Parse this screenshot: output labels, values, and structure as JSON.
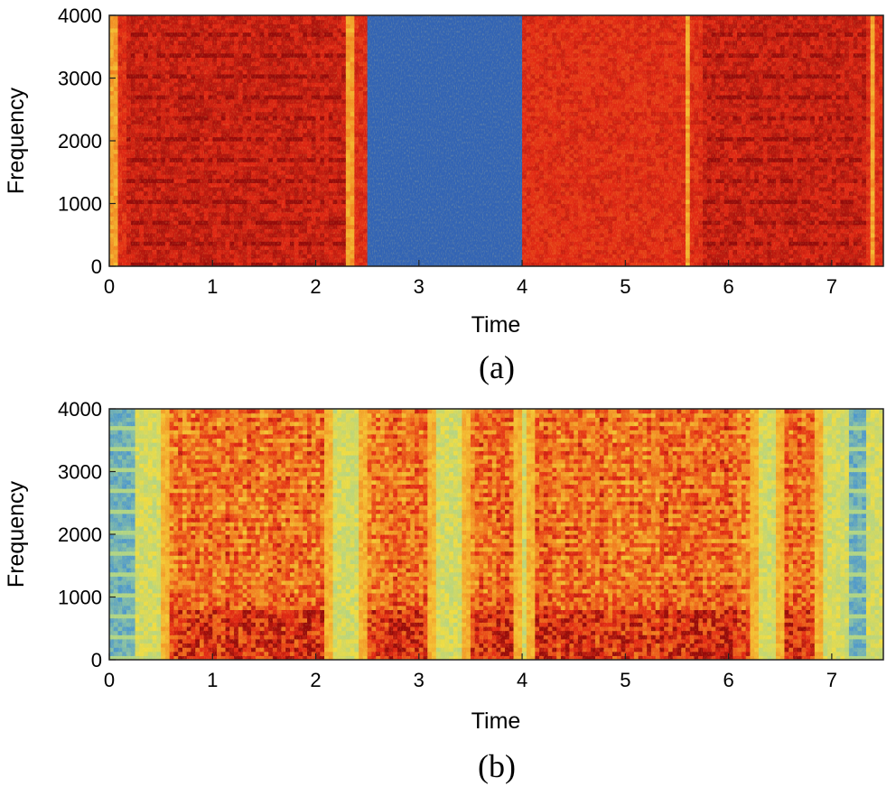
{
  "chart_data": [
    {
      "type": "heatmap",
      "panel_label": "(a)",
      "title": "",
      "xlabel": "Time",
      "ylabel": "Frequency",
      "xlim": [
        0,
        7.5
      ],
      "ylim": [
        0,
        4000
      ],
      "xticks": [
        0,
        1,
        2,
        3,
        4,
        5,
        6,
        7
      ],
      "yticks": [
        0,
        1000,
        2000,
        3000,
        4000
      ],
      "colormap": "jet",
      "base_level": 0.92,
      "regions": [
        {
          "t0": 2.52,
          "t1": 4.02,
          "level": 0.14,
          "note": "blank segment"
        }
      ],
      "onsets": [
        0.05,
        2.33,
        5.6,
        7.4
      ],
      "speech_segments": [
        [
          0.15,
          2.3
        ],
        [
          5.75,
          7.35
        ]
      ],
      "colors": {
        "speech": "#d81e12",
        "noise": "#f03a18",
        "blank": "#2b3286",
        "onset": "#f7c33a"
      }
    },
    {
      "type": "heatmap",
      "panel_label": "(b)",
      "title": "",
      "xlabel": "Time",
      "ylabel": "Frequency",
      "xlim": [
        0,
        7.5
      ],
      "ylim": [
        0,
        4000
      ],
      "xticks": [
        0,
        1,
        2,
        3,
        4,
        5,
        6,
        7
      ],
      "yticks": [
        0,
        1000,
        2000,
        3000,
        4000
      ],
      "colormap": "jet",
      "background_level": 0.55,
      "speech_segments": [
        [
          0.5,
          2.15
        ],
        [
          2.4,
          3.15
        ],
        [
          3.4,
          4.0
        ],
        [
          4.05,
          6.3
        ],
        [
          6.45,
          6.9
        ]
      ],
      "silence_blocks": [
        [
          0.0,
          0.25
        ],
        [
          7.15,
          7.35
        ]
      ],
      "colors": {
        "speech": "#d8200f",
        "transition": "#f5d63a",
        "background": "#a9d48b",
        "silence": "#3f8fd6"
      }
    }
  ]
}
